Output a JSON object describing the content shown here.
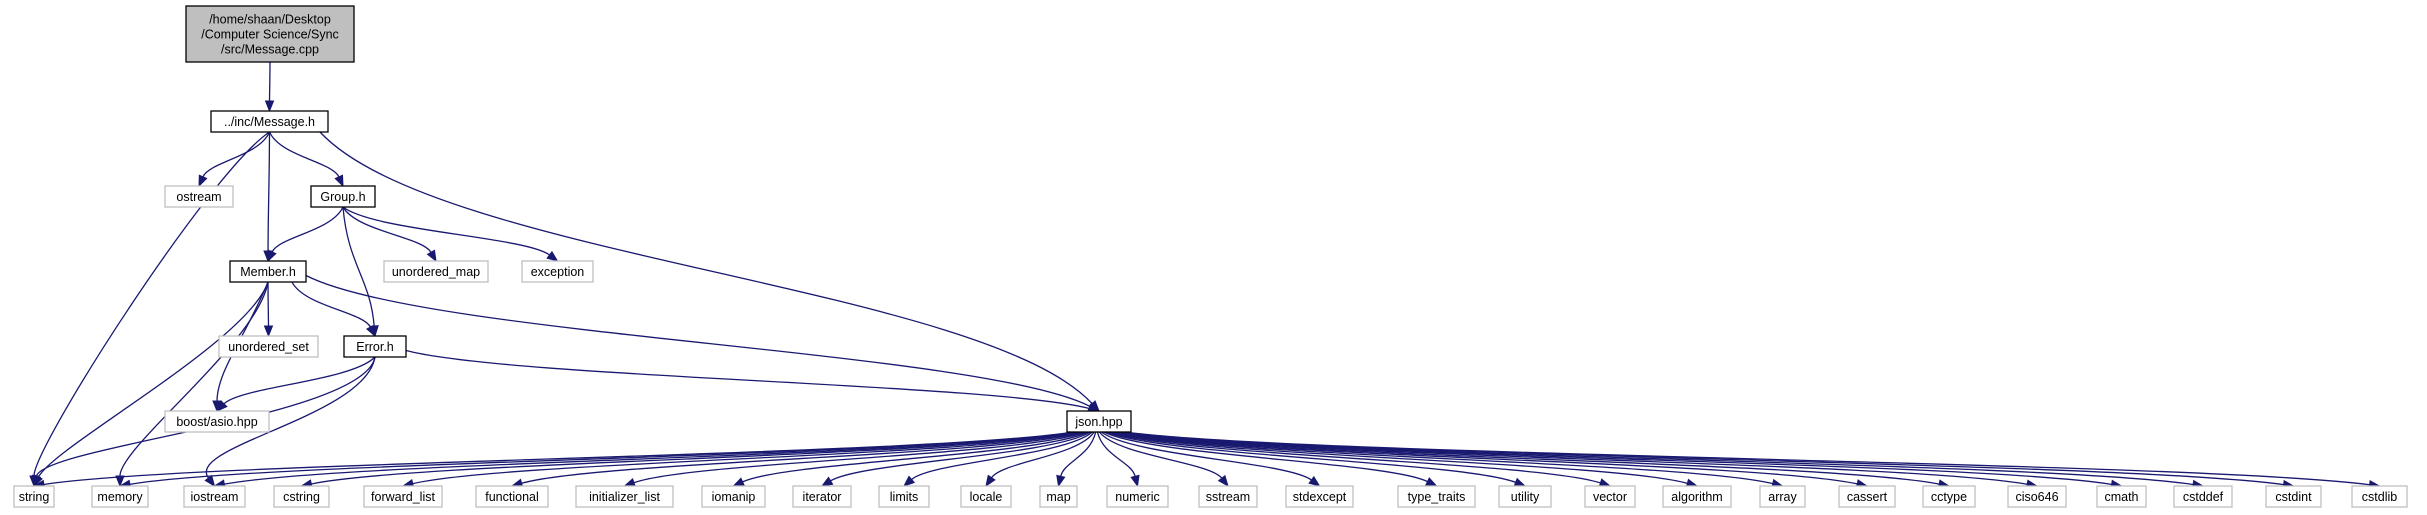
{
  "diagram": {
    "title": "",
    "nodes": [
      {
        "id": "root",
        "kind": "root",
        "lines": [
          "/home/shaan/Desktop",
          "/Computer Science/Sync",
          "/src/Message.cpp"
        ]
      },
      {
        "id": "message_h",
        "kind": "local",
        "lines": [
          "../inc/Message.h"
        ]
      },
      {
        "id": "ostream",
        "kind": "ext",
        "lines": [
          "ostream"
        ]
      },
      {
        "id": "group_h",
        "kind": "local",
        "lines": [
          "Group.h"
        ]
      },
      {
        "id": "member_h",
        "kind": "local",
        "lines": [
          "Member.h"
        ]
      },
      {
        "id": "unordered_map",
        "kind": "ext",
        "lines": [
          "unordered_map"
        ]
      },
      {
        "id": "exception",
        "kind": "ext",
        "lines": [
          "exception"
        ]
      },
      {
        "id": "unordered_set",
        "kind": "ext",
        "lines": [
          "unordered_set"
        ]
      },
      {
        "id": "error_h",
        "kind": "local",
        "lines": [
          "Error.h"
        ]
      },
      {
        "id": "boost_asio",
        "kind": "ext",
        "lines": [
          "boost/asio.hpp"
        ]
      },
      {
        "id": "json_hpp",
        "kind": "local",
        "lines": [
          "json.hpp"
        ]
      },
      {
        "id": "string",
        "kind": "ext",
        "lines": [
          "string"
        ]
      },
      {
        "id": "memory",
        "kind": "ext",
        "lines": [
          "memory"
        ]
      },
      {
        "id": "iostream",
        "kind": "ext",
        "lines": [
          "iostream"
        ]
      },
      {
        "id": "cstring",
        "kind": "ext",
        "lines": [
          "cstring"
        ]
      },
      {
        "id": "forward_list",
        "kind": "ext",
        "lines": [
          "forward_list"
        ]
      },
      {
        "id": "functional",
        "kind": "ext",
        "lines": [
          "functional"
        ]
      },
      {
        "id": "initializer_list",
        "kind": "ext",
        "lines": [
          "initializer_list"
        ]
      },
      {
        "id": "iomanip",
        "kind": "ext",
        "lines": [
          "iomanip"
        ]
      },
      {
        "id": "iterator",
        "kind": "ext",
        "lines": [
          "iterator"
        ]
      },
      {
        "id": "limits",
        "kind": "ext",
        "lines": [
          "limits"
        ]
      },
      {
        "id": "locale",
        "kind": "ext",
        "lines": [
          "locale"
        ]
      },
      {
        "id": "map",
        "kind": "ext",
        "lines": [
          "map"
        ]
      },
      {
        "id": "numeric",
        "kind": "ext",
        "lines": [
          "numeric"
        ]
      },
      {
        "id": "sstream",
        "kind": "ext",
        "lines": [
          "sstream"
        ]
      },
      {
        "id": "stdexcept",
        "kind": "ext",
        "lines": [
          "stdexcept"
        ]
      },
      {
        "id": "type_traits",
        "kind": "ext",
        "lines": [
          "type_traits"
        ]
      },
      {
        "id": "utility",
        "kind": "ext",
        "lines": [
          "utility"
        ]
      },
      {
        "id": "vector",
        "kind": "ext",
        "lines": [
          "vector"
        ]
      },
      {
        "id": "algorithm",
        "kind": "ext",
        "lines": [
          "algorithm"
        ]
      },
      {
        "id": "array",
        "kind": "ext",
        "lines": [
          "array"
        ]
      },
      {
        "id": "cassert",
        "kind": "ext",
        "lines": [
          "cassert"
        ]
      },
      {
        "id": "cctype",
        "kind": "ext",
        "lines": [
          "cctype"
        ]
      },
      {
        "id": "ciso646",
        "kind": "ext",
        "lines": [
          "ciso646"
        ]
      },
      {
        "id": "cmath",
        "kind": "ext",
        "lines": [
          "cmath"
        ]
      },
      {
        "id": "cstddef",
        "kind": "ext",
        "lines": [
          "cstddef"
        ]
      },
      {
        "id": "cstdint",
        "kind": "ext",
        "lines": [
          "cstdint"
        ]
      },
      {
        "id": "cstdlib",
        "kind": "ext",
        "lines": [
          "cstdlib"
        ]
      }
    ],
    "edges": [
      [
        "root",
        "message_h"
      ],
      [
        "message_h",
        "string"
      ],
      [
        "message_h",
        "ostream"
      ],
      [
        "message_h",
        "member_h"
      ],
      [
        "message_h",
        "group_h"
      ],
      [
        "message_h",
        "json_hpp"
      ],
      [
        "group_h",
        "member_h"
      ],
      [
        "group_h",
        "error_h"
      ],
      [
        "group_h",
        "unordered_map"
      ],
      [
        "group_h",
        "exception"
      ],
      [
        "member_h",
        "string"
      ],
      [
        "member_h",
        "memory"
      ],
      [
        "member_h",
        "boost_asio"
      ],
      [
        "member_h",
        "unordered_set"
      ],
      [
        "member_h",
        "error_h"
      ],
      [
        "member_h",
        "json_hpp"
      ],
      [
        "error_h",
        "boost_asio"
      ],
      [
        "error_h",
        "string"
      ],
      [
        "error_h",
        "iostream"
      ],
      [
        "error_h",
        "json_hpp"
      ],
      [
        "json_hpp",
        "string"
      ],
      [
        "json_hpp",
        "memory"
      ],
      [
        "json_hpp",
        "iostream"
      ],
      [
        "json_hpp",
        "cstring"
      ],
      [
        "json_hpp",
        "forward_list"
      ],
      [
        "json_hpp",
        "functional"
      ],
      [
        "json_hpp",
        "initializer_list"
      ],
      [
        "json_hpp",
        "iomanip"
      ],
      [
        "json_hpp",
        "iterator"
      ],
      [
        "json_hpp",
        "limits"
      ],
      [
        "json_hpp",
        "locale"
      ],
      [
        "json_hpp",
        "map"
      ],
      [
        "json_hpp",
        "numeric"
      ],
      [
        "json_hpp",
        "sstream"
      ],
      [
        "json_hpp",
        "stdexcept"
      ],
      [
        "json_hpp",
        "type_traits"
      ],
      [
        "json_hpp",
        "utility"
      ],
      [
        "json_hpp",
        "vector"
      ],
      [
        "json_hpp",
        "algorithm"
      ],
      [
        "json_hpp",
        "array"
      ],
      [
        "json_hpp",
        "cassert"
      ],
      [
        "json_hpp",
        "cctype"
      ],
      [
        "json_hpp",
        "ciso646"
      ],
      [
        "json_hpp",
        "cmath"
      ],
      [
        "json_hpp",
        "cstddef"
      ],
      [
        "json_hpp",
        "cstdint"
      ],
      [
        "json_hpp",
        "cstdlib"
      ]
    ],
    "colors": {
      "edge": "#191970",
      "root_fill": "#bfbfbf",
      "local_border": "#000000",
      "external_border": "#bfbfbf",
      "background": "#ffffff"
    }
  }
}
